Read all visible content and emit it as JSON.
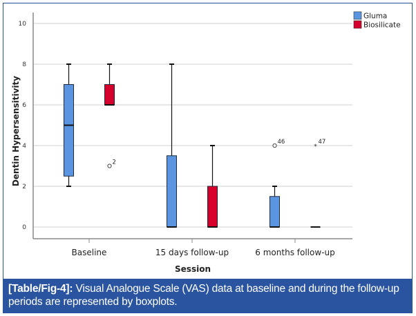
{
  "caption": {
    "label": "[Table/Fig-4]:",
    "text": " Visual Analogue Scale (VAS) data at baseline and during the follow-up periods are represented by boxplots."
  },
  "colors": {
    "gluma": "#5b95e1",
    "biosilicate": "#d5002c",
    "caption_bg": "#2a54a0",
    "frame": "#2a4d8f",
    "grid": "#d2d2d2",
    "axis": "#8a8a8a"
  },
  "chart_data": {
    "type": "boxplot",
    "title": "",
    "xlabel": "Session",
    "ylabel": "Dentin Hypersensitivity",
    "ylim": [
      -0.6,
      10.6
    ],
    "yticks": [
      0,
      2,
      4,
      6,
      8,
      10
    ],
    "grid": true,
    "legend_position": "top-right",
    "categories": [
      "Baseline",
      "15 days follow-up",
      "6 months follow-up"
    ],
    "series": [
      {
        "name": "Gluma",
        "color": "#5b95e1",
        "boxes": [
          {
            "whisker_low": 2,
            "q1": 2.5,
            "median": 5,
            "q3": 7,
            "whisker_high": 8,
            "outliers": []
          },
          {
            "whisker_low": 0,
            "q1": 0,
            "median": 0,
            "q3": 3.5,
            "whisker_high": 8,
            "outliers": []
          },
          {
            "whisker_low": 0,
            "q1": 0,
            "median": 0,
            "q3": 1.5,
            "whisker_high": 2,
            "outliers": [
              {
                "value": 4,
                "label": "46",
                "marker": "circle"
              }
            ]
          }
        ]
      },
      {
        "name": "Biosilicate",
        "color": "#d5002c",
        "boxes": [
          {
            "whisker_low": 6,
            "q1": 6,
            "median": 6,
            "q3": 7,
            "whisker_high": 8,
            "outliers": [
              {
                "value": 3,
                "label": "2",
                "marker": "circle"
              }
            ]
          },
          {
            "whisker_low": 0,
            "q1": 0,
            "median": 0,
            "q3": 2,
            "whisker_high": 4,
            "outliers": []
          },
          {
            "whisker_low": 0,
            "q1": 0,
            "median": 0,
            "q3": 0,
            "whisker_high": 0,
            "outliers": [
              {
                "value": 4,
                "label": "47",
                "marker": "star"
              }
            ]
          }
        ]
      }
    ]
  }
}
